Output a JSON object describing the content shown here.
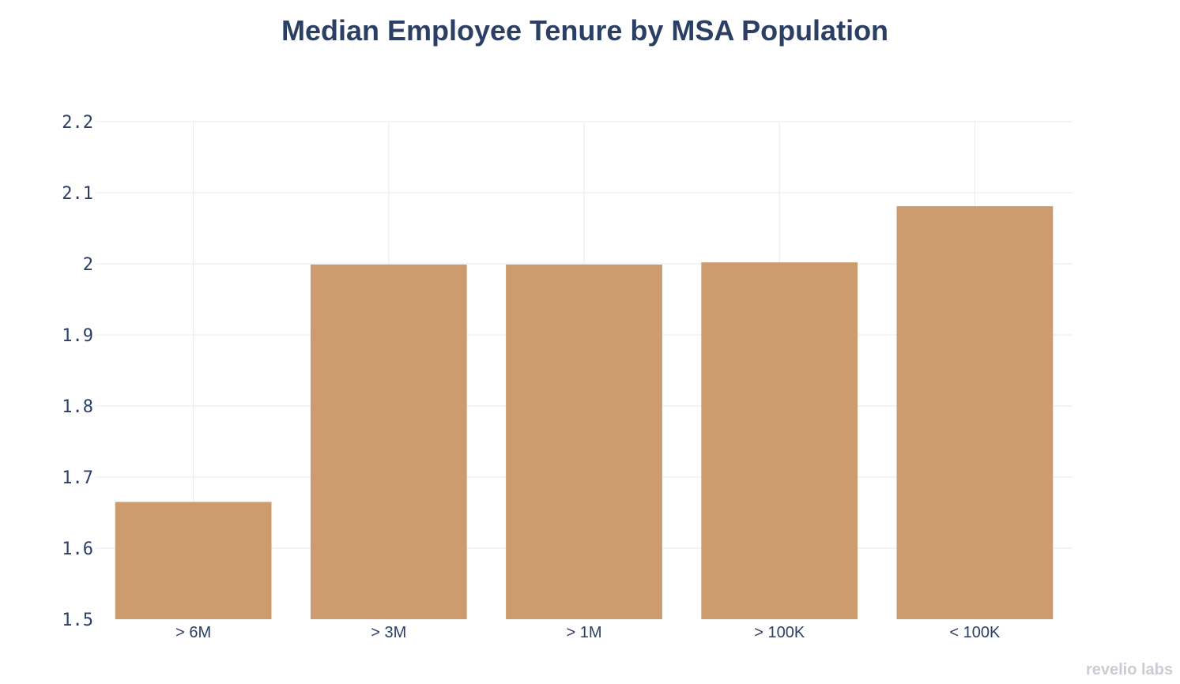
{
  "chart_data": {
    "type": "bar",
    "title": "Median Employee Tenure by MSA Population",
    "xlabel": "",
    "ylabel": "",
    "categories": [
      "> 6M",
      "> 3M",
      "> 1M",
      "> 100K",
      "< 100K"
    ],
    "values": [
      1.665,
      1.999,
      1.999,
      2.002,
      2.081
    ],
    "ylim": [
      1.5,
      2.2
    ],
    "yticks": [
      "1.5",
      "1.6",
      "1.7",
      "1.8",
      "1.9",
      "2",
      "2.1",
      "2.2"
    ],
    "grid": true,
    "bar_color": "#cc9b6e",
    "grid_color": "#e8eaee",
    "text_color": "#2b3f65"
  },
  "watermark": "revelio labs"
}
